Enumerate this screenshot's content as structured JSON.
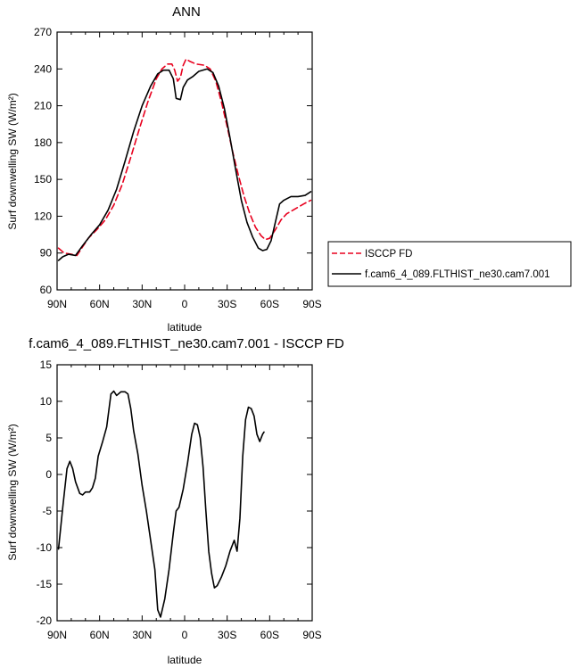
{
  "chart_data": [
    {
      "type": "line",
      "title": "ANN",
      "xlabel": "latitude",
      "ylabel": "Surf downwelling SW (W/m²)",
      "xlim": [
        -90,
        90
      ],
      "ylim": [
        60,
        270
      ],
      "xticks": [
        -90,
        -60,
        -30,
        0,
        30,
        60,
        90
      ],
      "xtick_labels": [
        "90N",
        "60N",
        "30N",
        "0",
        "30S",
        "60S",
        "90S"
      ],
      "yticks": [
        60,
        90,
        120,
        150,
        180,
        210,
        240,
        270
      ],
      "legend": "right",
      "series": [
        {
          "name": "ISCCP FD",
          "color": "#e8001e",
          "dashed": true,
          "points": [
            [
              -89,
              94
            ],
            [
              -85,
              90
            ],
            [
              -80,
              89
            ],
            [
              -76,
              88
            ],
            [
              -72,
              95
            ],
            [
              -68,
              102
            ],
            [
              -62,
              109
            ],
            [
              -56,
              117
            ],
            [
              -50,
              129
            ],
            [
              -44,
              146
            ],
            [
              -38,
              168
            ],
            [
              -32,
              191
            ],
            [
              -26,
              213
            ],
            [
              -20,
              232
            ],
            [
              -16,
              240
            ],
            [
              -12,
              244
            ],
            [
              -9,
              244
            ],
            [
              -7,
              239
            ],
            [
              -5,
              230
            ],
            [
              -3,
              233
            ],
            [
              -1,
              243
            ],
            [
              1,
              248
            ],
            [
              4,
              246
            ],
            [
              8,
              244
            ],
            [
              14,
              243
            ],
            [
              18,
              240
            ],
            [
              22,
              230
            ],
            [
              26,
              213
            ],
            [
              30,
              193
            ],
            [
              34,
              172
            ],
            [
              38,
              153
            ],
            [
              42,
              136
            ],
            [
              46,
              122
            ],
            [
              50,
              111
            ],
            [
              54,
              104
            ],
            [
              57,
              101
            ],
            [
              60,
              102
            ],
            [
              64,
              109
            ],
            [
              68,
              117
            ],
            [
              72,
              122
            ],
            [
              78,
              126
            ],
            [
              84,
              130
            ],
            [
              89,
              133
            ]
          ]
        },
        {
          "name": "f.cam6_4_089.FLTHIST_ne30.cam7.001",
          "color": "#000000",
          "dashed": false,
          "points": [
            [
              -89,
              84
            ],
            [
              -86,
              87
            ],
            [
              -82,
              89
            ],
            [
              -77,
              88
            ],
            [
              -72,
              96
            ],
            [
              -66,
              105
            ],
            [
              -60,
              113
            ],
            [
              -54,
              125
            ],
            [
              -48,
              142
            ],
            [
              -42,
              165
            ],
            [
              -36,
              189
            ],
            [
              -30,
              210
            ],
            [
              -24,
              226
            ],
            [
              -19,
              236
            ],
            [
              -15,
              239
            ],
            [
              -11,
              239
            ],
            [
              -8,
              232
            ],
            [
              -6,
              216
            ],
            [
              -3,
              215
            ],
            [
              -1,
              225
            ],
            [
              2,
              231
            ],
            [
              6,
              234
            ],
            [
              10,
              238
            ],
            [
              16,
              240
            ],
            [
              20,
              237
            ],
            [
              24,
              226
            ],
            [
              28,
              208
            ],
            [
              32,
              184
            ],
            [
              36,
              158
            ],
            [
              40,
              133
            ],
            [
              44,
              115
            ],
            [
              48,
              103
            ],
            [
              52,
              94
            ],
            [
              55,
              92
            ],
            [
              58,
              93
            ],
            [
              61,
              100
            ],
            [
              64,
              115
            ],
            [
              67,
              130
            ],
            [
              70,
              133
            ],
            [
              75,
              136
            ],
            [
              80,
              136
            ],
            [
              85,
              137
            ],
            [
              89,
              140
            ]
          ]
        }
      ]
    },
    {
      "type": "line",
      "title": "f.cam6_4_089.FLTHIST_ne30.cam7.001 - ISCCP FD",
      "xlabel": "latitude",
      "ylabel": "Surf downwelling SW (W/m²)",
      "xlim": [
        -90,
        90
      ],
      "ylim": [
        -20,
        15
      ],
      "xticks": [
        -90,
        -60,
        -30,
        0,
        30,
        60,
        90
      ],
      "xtick_labels": [
        "90N",
        "60N",
        "30N",
        "0",
        "30S",
        "60S",
        "90S"
      ],
      "yticks": [
        -20,
        -15,
        -10,
        -5,
        0,
        5,
        10,
        15
      ],
      "series": [
        {
          "color": "#000000",
          "dashed": false,
          "points": [
            [
              -89,
              -10.2
            ],
            [
              -86,
              -4.5
            ],
            [
              -83,
              0.8
            ],
            [
              -81,
              1.8
            ],
            [
              -79,
              0.8
            ],
            [
              -77,
              -1.0
            ],
            [
              -74,
              -2.6
            ],
            [
              -72,
              -2.8
            ],
            [
              -70,
              -2.4
            ],
            [
              -67,
              -2.4
            ],
            [
              -65,
              -1.8
            ],
            [
              -63,
              -0.5
            ],
            [
              -61,
              2.5
            ],
            [
              -58,
              4.4
            ],
            [
              -55,
              6.5
            ],
            [
              -52,
              11.0
            ],
            [
              -50,
              11.4
            ],
            [
              -48,
              10.8
            ],
            [
              -45,
              11.3
            ],
            [
              -42,
              11.3
            ],
            [
              -40,
              11.0
            ],
            [
              -38,
              9.0
            ],
            [
              -36,
              6.0
            ],
            [
              -33,
              2.8
            ],
            [
              -30,
              -1.5
            ],
            [
              -27,
              -5.0
            ],
            [
              -24,
              -9.0
            ],
            [
              -21,
              -13.0
            ],
            [
              -19,
              -18.5
            ],
            [
              -17,
              -19.5
            ],
            [
              -14,
              -17.0
            ],
            [
              -11,
              -13.0
            ],
            [
              -8,
              -8.0
            ],
            [
              -6,
              -5.0
            ],
            [
              -4,
              -4.5
            ],
            [
              -1,
              -2.0
            ],
            [
              2,
              1.5
            ],
            [
              5,
              5.5
            ],
            [
              7,
              7.0
            ],
            [
              9,
              6.8
            ],
            [
              11,
              5.0
            ],
            [
              13,
              1.0
            ],
            [
              15,
              -5.0
            ],
            [
              17,
              -10.5
            ],
            [
              19,
              -13.5
            ],
            [
              21,
              -15.5
            ],
            [
              23,
              -15.2
            ],
            [
              26,
              -14.0
            ],
            [
              29,
              -12.5
            ],
            [
              32,
              -10.5
            ],
            [
              35,
              -9.0
            ],
            [
              37,
              -10.5
            ],
            [
              39,
              -6.0
            ],
            [
              41,
              2.5
            ],
            [
              43,
              7.5
            ],
            [
              45,
              9.2
            ],
            [
              47,
              9.0
            ],
            [
              49,
              8.0
            ],
            [
              51,
              5.5
            ],
            [
              53,
              4.5
            ],
            [
              55,
              5.5
            ],
            [
              56,
              5.8
            ]
          ]
        }
      ]
    }
  ]
}
